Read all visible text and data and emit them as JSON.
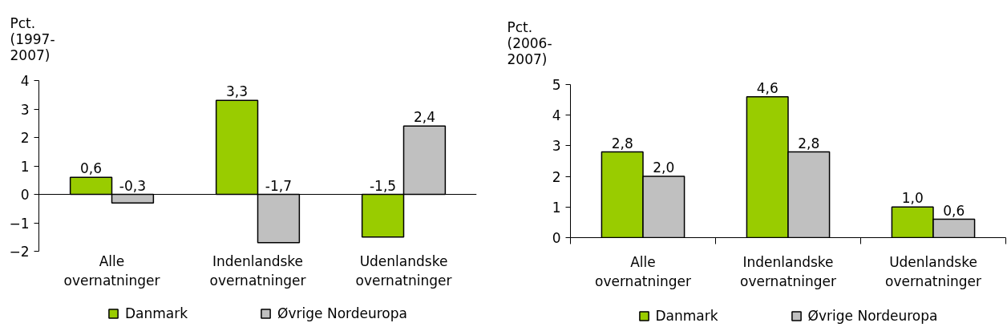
{
  "chart_data": [
    {
      "type": "bar",
      "ylabel": "Pct. (1997-2007)",
      "categories": [
        "Alle overnatninger",
        "Indenlandske overnatninger",
        "Udenlandske overnatninger"
      ],
      "series": [
        {
          "name": "Danmark",
          "color": "#99cc00",
          "values": [
            0.6,
            3.3,
            -1.5
          ],
          "value_labels": [
            "0,6",
            "3,3",
            "-1,5"
          ]
        },
        {
          "name": "Øvrige Nordeuropa",
          "color": "#c0c0c0",
          "values": [
            -0.3,
            -1.7,
            2.4
          ],
          "value_labels": [
            "-0,3",
            "-1,7",
            "2,4"
          ]
        }
      ],
      "ylim": [
        -2,
        4
      ],
      "yticks": [
        -2,
        -1,
        0,
        1,
        2,
        3,
        4
      ],
      "legend": "bottom"
    },
    {
      "type": "bar",
      "ylabel": "Pct. (2006-2007)",
      "categories": [
        "Alle overnatninger",
        "Indenlandske overnatninger",
        "Udenlandske overnatninger"
      ],
      "series": [
        {
          "name": "Danmark",
          "color": "#99cc00",
          "values": [
            2.8,
            4.6,
            1.0
          ],
          "value_labels": [
            "2,8",
            "4,6",
            "1,0"
          ]
        },
        {
          "name": "Øvrige Nordeuropa",
          "color": "#c0c0c0",
          "values": [
            2.0,
            2.8,
            0.6
          ],
          "value_labels": [
            "2,0",
            "2,8",
            "0,6"
          ]
        }
      ],
      "ylim": [
        0,
        5
      ],
      "yticks": [
        0,
        1,
        2,
        3,
        4,
        5
      ],
      "legend": "bottom"
    }
  ]
}
